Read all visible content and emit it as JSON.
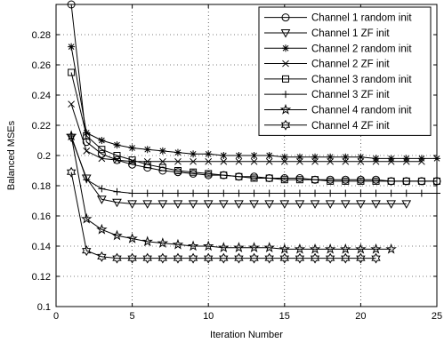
{
  "chart_data": {
    "type": "line",
    "title": "",
    "xlabel": "Iteration Number",
    "ylabel": "Balanced MSEs",
    "xlim": [
      0,
      25
    ],
    "ylim": [
      0.1,
      0.3
    ],
    "xticks": [
      0,
      5,
      10,
      15,
      20,
      25
    ],
    "yticks": [
      0.1,
      0.12,
      0.14,
      0.16,
      0.18,
      0.2,
      0.22,
      0.24,
      0.26,
      0.28
    ],
    "grid": true,
    "grid_style": "dotted",
    "legend_position": "top-right",
    "series": [
      {
        "name": "Channel 1 random init",
        "marker": "circle",
        "x": [
          1,
          2,
          3,
          4,
          5,
          6,
          7,
          8,
          9,
          10,
          11,
          12,
          13,
          14,
          15,
          16,
          17,
          18,
          19,
          20,
          21,
          22,
          23,
          24,
          25
        ],
        "y": [
          0.3,
          0.209,
          0.201,
          0.197,
          0.194,
          0.192,
          0.19,
          0.189,
          0.188,
          0.187,
          0.187,
          0.186,
          0.186,
          0.185,
          0.185,
          0.185,
          0.184,
          0.184,
          0.184,
          0.184,
          0.184,
          0.183,
          0.183,
          0.183,
          0.183
        ]
      },
      {
        "name": "Channel 1 ZF init",
        "marker": "triangle-down",
        "x": [
          1,
          2,
          3,
          4,
          5,
          6,
          7,
          8,
          9,
          10,
          11,
          12,
          13,
          14,
          15,
          16,
          17,
          18,
          19,
          20,
          21,
          22,
          23
        ],
        "y": [
          0.212,
          0.185,
          0.171,
          0.169,
          0.168,
          0.168,
          0.168,
          0.168,
          0.168,
          0.168,
          0.168,
          0.168,
          0.168,
          0.168,
          0.168,
          0.168,
          0.168,
          0.168,
          0.168,
          0.168,
          0.168,
          0.168,
          0.168
        ]
      },
      {
        "name": "Channel 2 random init",
        "marker": "asterisk",
        "x": [
          1,
          2,
          3,
          4,
          5,
          6,
          7,
          8,
          9,
          10,
          11,
          12,
          13,
          14,
          15,
          16,
          17,
          18,
          19,
          20,
          21,
          22,
          23,
          24,
          25
        ],
        "y": [
          0.272,
          0.215,
          0.21,
          0.207,
          0.205,
          0.204,
          0.203,
          0.202,
          0.201,
          0.201,
          0.2,
          0.2,
          0.2,
          0.2,
          0.199,
          0.199,
          0.199,
          0.199,
          0.199,
          0.199,
          0.198,
          0.198,
          0.198,
          0.198,
          0.198
        ]
      },
      {
        "name": "Channel 2 ZF init",
        "marker": "x",
        "x": [
          1,
          2,
          3,
          4,
          5,
          6,
          7,
          8,
          9,
          10,
          11,
          12,
          13,
          14,
          15,
          16,
          17,
          18,
          19,
          20,
          21,
          22,
          23,
          24
        ],
        "y": [
          0.234,
          0.203,
          0.198,
          0.197,
          0.196,
          0.196,
          0.196,
          0.196,
          0.196,
          0.196,
          0.196,
          0.196,
          0.196,
          0.196,
          0.196,
          0.196,
          0.196,
          0.196,
          0.196,
          0.196,
          0.196,
          0.196,
          0.196,
          0.196
        ]
      },
      {
        "name": "Channel 3 random init",
        "marker": "square",
        "x": [
          1,
          2,
          3,
          4,
          5,
          6,
          7,
          8,
          9,
          10,
          11,
          12,
          13,
          14,
          15,
          16,
          17,
          18,
          19,
          20,
          21,
          22,
          23,
          24,
          25
        ],
        "y": [
          0.255,
          0.213,
          0.204,
          0.2,
          0.197,
          0.194,
          0.192,
          0.19,
          0.189,
          0.188,
          0.187,
          0.186,
          0.185,
          0.185,
          0.184,
          0.184,
          0.184,
          0.183,
          0.183,
          0.183,
          0.183,
          0.183,
          0.183,
          0.183,
          0.183
        ]
      },
      {
        "name": "Channel 3 ZF init",
        "marker": "plus",
        "x": [
          1,
          2,
          3,
          4,
          5,
          6,
          7,
          8,
          9,
          10,
          11,
          12,
          13,
          14,
          15,
          16,
          17,
          18,
          19,
          20,
          21,
          22,
          23,
          24,
          25
        ],
        "y": [
          0.213,
          0.184,
          0.178,
          0.176,
          0.175,
          0.175,
          0.175,
          0.175,
          0.175,
          0.175,
          0.175,
          0.175,
          0.175,
          0.175,
          0.175,
          0.175,
          0.175,
          0.175,
          0.175,
          0.175,
          0.175,
          0.175,
          0.175,
          0.175,
          0.175
        ]
      },
      {
        "name": "Channel 4 random init",
        "marker": "star",
        "x": [
          1,
          2,
          3,
          4,
          5,
          6,
          7,
          8,
          9,
          10,
          11,
          12,
          13,
          14,
          15,
          16,
          17,
          18,
          19,
          20,
          21,
          22
        ],
        "y": [
          0.213,
          0.158,
          0.151,
          0.147,
          0.145,
          0.143,
          0.142,
          0.141,
          0.14,
          0.14,
          0.139,
          0.139,
          0.139,
          0.139,
          0.138,
          0.138,
          0.138,
          0.138,
          0.138,
          0.138,
          0.138,
          0.138
        ]
      },
      {
        "name": "Channel 4 ZF init",
        "marker": "hexagram",
        "x": [
          1,
          2,
          3,
          4,
          5,
          6,
          7,
          8,
          9,
          10,
          11,
          12,
          13,
          14,
          15,
          16,
          17,
          18,
          19,
          20,
          21
        ],
        "y": [
          0.189,
          0.137,
          0.133,
          0.132,
          0.132,
          0.132,
          0.132,
          0.132,
          0.132,
          0.132,
          0.132,
          0.132,
          0.132,
          0.132,
          0.132,
          0.132,
          0.132,
          0.132,
          0.132,
          0.132,
          0.132
        ]
      }
    ]
  }
}
